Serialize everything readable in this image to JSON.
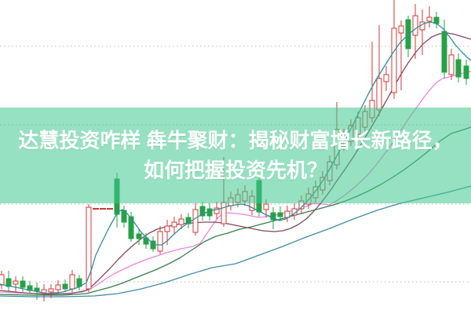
{
  "overlay": {
    "headline_line1": "达慧投资咋样 犇牛聚财：揭秘财富增长新路径，",
    "headline_line2": "如何把握投资先机？",
    "banner_rgba": "rgba(63,201,142,0.55)",
    "text_color": "#ffffff"
  },
  "chart_data": {
    "type": "candlestick",
    "title": "",
    "xlabel": "",
    "ylabel": "",
    "note": "No axis tick labels are visible in the image; all values below are relative price units (image pixels from bottom edge, higher = higher price). Candles are [x, open, high, low, close]; open==close==high==low means a one-price (limit) day drawn as a short dash.",
    "grid": true,
    "gridlines_price": [
      341.5,
      241.5,
      140.5,
      41.5
    ],
    "colors": {
      "up_candle": "#cd3a3a",
      "down_candle": "#26a147",
      "grid": "#b9b9b9",
      "ma_fast_teal": "#2e8f96",
      "ma2_maroon": "#84485f",
      "ma3_pink": "#ee85d6",
      "ma4_green": "#35814a",
      "ma5_blue": "#3f8ca8"
    },
    "candle_width": 6,
    "x_range": [
      0,
      600
    ],
    "price_range": [
      0,
      400
    ],
    "candles": [
      [
        2,
        37,
        55,
        32,
        50
      ],
      [
        11,
        45,
        55,
        28,
        35
      ],
      [
        20,
        38,
        48,
        28,
        42
      ],
      [
        29,
        42,
        48,
        28,
        34
      ],
      [
        38,
        36,
        42,
        26,
        30
      ],
      [
        47,
        33,
        40,
        18,
        29
      ],
      [
        56,
        27,
        38,
        16,
        31
      ],
      [
        65,
        28,
        38,
        20,
        32
      ],
      [
        74,
        31,
        43,
        26,
        37
      ],
      [
        83,
        38,
        44,
        28,
        32
      ],
      [
        92,
        32,
        56,
        28,
        50
      ],
      [
        101,
        45,
        50,
        30,
        35
      ],
      [
        113,
        32,
        140,
        28,
        136
      ],
      [
        122,
        134,
        134,
        134,
        134
      ],
      [
        131,
        134,
        134,
        134,
        134
      ],
      [
        140,
        134,
        134,
        134,
        134
      ],
      [
        149,
        172,
        180,
        110,
        127
      ],
      [
        158,
        132,
        138,
        110,
        117
      ],
      [
        167,
        124,
        130,
        92,
        96
      ],
      [
        177,
        102,
        108,
        88,
        96
      ],
      [
        186,
        97,
        103,
        83,
        89
      ],
      [
        195,
        93,
        99,
        79,
        83
      ],
      [
        204,
        80,
        112,
        76,
        105
      ],
      [
        213,
        105,
        120,
        88,
        112
      ],
      [
        222,
        111,
        124,
        102,
        117
      ],
      [
        231,
        114,
        127,
        108,
        121
      ],
      [
        240,
        123,
        129,
        109,
        115
      ],
      [
        249,
        104,
        141,
        100,
        133
      ],
      [
        258,
        137,
        143,
        119,
        125
      ],
      [
        267,
        134,
        141,
        119,
        125
      ],
      [
        276,
        128,
        143,
        121,
        135
      ],
      [
        285,
        115,
        200,
        111,
        142
      ],
      [
        294,
        138,
        156,
        132,
        148
      ],
      [
        303,
        142,
        160,
        136,
        152
      ],
      [
        312,
        144,
        164,
        138,
        156
      ],
      [
        321,
        132,
        158,
        126,
        150
      ],
      [
        330,
        170,
        176,
        124,
        130
      ],
      [
        339,
        133,
        146,
        123,
        140
      ],
      [
        348,
        129,
        136,
        108,
        120
      ],
      [
        357,
        129,
        137,
        119,
        124
      ],
      [
        366,
        123,
        138,
        117,
        131
      ],
      [
        375,
        126,
        141,
        120,
        134
      ],
      [
        384,
        134,
        151,
        128,
        144
      ],
      [
        393,
        140,
        161,
        134,
        153
      ],
      [
        402,
        148,
        170,
        142,
        162
      ],
      [
        411,
        158,
        182,
        152,
        174
      ],
      [
        420,
        170,
        202,
        164,
        194
      ],
      [
        429,
        190,
        270,
        184,
        235
      ],
      [
        438,
        214,
        236,
        208,
        228
      ],
      [
        447,
        220,
        248,
        214,
        240
      ],
      [
        456,
        229,
        258,
        223,
        250
      ],
      [
        465,
        238,
        266,
        232,
        258
      ],
      [
        474,
        250,
        347,
        244,
        272
      ],
      [
        483,
        260,
        368,
        252,
        300
      ],
      [
        492,
        296,
        316,
        284,
        305
      ],
      [
        502,
        282,
        400,
        274,
        364
      ],
      [
        511,
        358,
        374,
        285,
        367
      ],
      [
        520,
        375,
        380,
        327,
        338
      ],
      [
        529,
        355,
        395,
        325,
        380
      ],
      [
        538,
        362,
        388,
        330,
        372
      ],
      [
        547,
        373,
        392,
        365,
        378
      ],
      [
        556,
        378,
        385,
        364,
        370
      ],
      [
        566,
        360,
        375,
        300,
        308
      ],
      [
        575,
        305,
        338,
        298,
        330
      ],
      [
        584,
        324,
        332,
        295,
        302
      ],
      [
        594,
        316,
        324,
        292,
        300
      ]
    ],
    "series": [
      {
        "name": "ma5_blue",
        "points": [
          [
            0,
            23
          ],
          [
            40,
            22
          ],
          [
            80,
            22
          ],
          [
            120,
            23
          ],
          [
            150,
            26
          ],
          [
            180,
            32
          ],
          [
            210,
            40
          ],
          [
            240,
            50
          ],
          [
            270,
            59
          ],
          [
            300,
            64
          ],
          [
            330,
            75
          ],
          [
            360,
            86
          ],
          [
            390,
            98
          ],
          [
            420,
            109
          ],
          [
            450,
            121
          ],
          [
            480,
            132
          ],
          [
            510,
            141
          ],
          [
            540,
            148
          ],
          [
            570,
            155
          ],
          [
            600,
            163
          ]
        ]
      },
      {
        "name": "ma4_green",
        "points": [
          [
            0,
            25
          ],
          [
            40,
            24
          ],
          [
            80,
            24
          ],
          [
            110,
            26
          ],
          [
            125,
            30
          ],
          [
            140,
            34
          ],
          [
            155,
            39
          ],
          [
            170,
            45
          ],
          [
            185,
            51
          ],
          [
            200,
            57
          ],
          [
            215,
            64
          ],
          [
            230,
            72
          ],
          [
            245,
            82
          ],
          [
            260,
            92
          ],
          [
            275,
            99
          ],
          [
            290,
            103
          ],
          [
            305,
            108
          ],
          [
            320,
            111
          ],
          [
            335,
            115
          ],
          [
            350,
            119
          ],
          [
            365,
            123
          ],
          [
            380,
            127
          ],
          [
            395,
            131
          ],
          [
            410,
            135
          ],
          [
            425,
            139
          ],
          [
            440,
            144
          ],
          [
            455,
            150
          ],
          [
            470,
            157
          ],
          [
            485,
            165
          ],
          [
            500,
            174
          ],
          [
            515,
            184
          ],
          [
            530,
            195
          ],
          [
            545,
            207
          ],
          [
            560,
            220
          ],
          [
            575,
            230
          ],
          [
            588,
            234
          ],
          [
            600,
            238
          ]
        ]
      },
      {
        "name": "ma3_pink",
        "points": [
          [
            0,
            28
          ],
          [
            40,
            26
          ],
          [
            80,
            26
          ],
          [
            105,
            28
          ],
          [
            115,
            32
          ],
          [
            125,
            38
          ],
          [
            135,
            45
          ],
          [
            145,
            51
          ],
          [
            155,
            56
          ],
          [
            170,
            63
          ],
          [
            185,
            69
          ],
          [
            200,
            74
          ],
          [
            215,
            79
          ],
          [
            230,
            83
          ],
          [
            245,
            86
          ],
          [
            255,
            90
          ],
          [
            262,
            100
          ],
          [
            270,
            112
          ],
          [
            278,
            123
          ],
          [
            284,
            128
          ],
          [
            292,
            129
          ],
          [
            300,
            128
          ],
          [
            310,
            127
          ],
          [
            320,
            125
          ],
          [
            330,
            123
          ],
          [
            340,
            124
          ],
          [
            350,
            126
          ],
          [
            360,
            128
          ],
          [
            370,
            131
          ],
          [
            380,
            134
          ],
          [
            390,
            137
          ],
          [
            400,
            141
          ],
          [
            410,
            140
          ],
          [
            420,
            139
          ],
          [
            430,
            145
          ],
          [
            440,
            152
          ],
          [
            450,
            160
          ],
          [
            460,
            169
          ],
          [
            470,
            179
          ],
          [
            480,
            191
          ],
          [
            490,
            204
          ],
          [
            500,
            218
          ],
          [
            510,
            233
          ],
          [
            520,
            248
          ],
          [
            530,
            262
          ],
          [
            540,
            276
          ],
          [
            548,
            286
          ],
          [
            556,
            295
          ],
          [
            564,
            300
          ],
          [
            572,
            302
          ],
          [
            580,
            304
          ],
          [
            590,
            307
          ],
          [
            600,
            309
          ]
        ]
      },
      {
        "name": "ma2_maroon",
        "points": [
          [
            0,
            30
          ],
          [
            30,
            27
          ],
          [
            60,
            25
          ],
          [
            90,
            26
          ],
          [
            110,
            30
          ],
          [
            120,
            38
          ],
          [
            130,
            48
          ],
          [
            140,
            58
          ],
          [
            150,
            69
          ],
          [
            160,
            79
          ],
          [
            170,
            88
          ],
          [
            180,
            96
          ],
          [
            190,
            103
          ],
          [
            200,
            108
          ],
          [
            215,
            112
          ],
          [
            230,
            115
          ],
          [
            245,
            116
          ],
          [
            260,
            117
          ],
          [
            275,
            117
          ],
          [
            290,
            115
          ],
          [
            305,
            112
          ],
          [
            320,
            109
          ],
          [
            335,
            106
          ],
          [
            350,
            105
          ],
          [
            360,
            106
          ],
          [
            370,
            109
          ],
          [
            380,
            114
          ],
          [
            390,
            121
          ],
          [
            398,
            129
          ],
          [
            406,
            138
          ],
          [
            414,
            148
          ],
          [
            422,
            159
          ],
          [
            430,
            171
          ],
          [
            440,
            185
          ],
          [
            450,
            200
          ],
          [
            460,
            216
          ],
          [
            470,
            233
          ],
          [
            480,
            250
          ],
          [
            490,
            268
          ],
          [
            500,
            286
          ],
          [
            510,
            304
          ],
          [
            520,
            320
          ],
          [
            530,
            334
          ],
          [
            540,
            345
          ],
          [
            550,
            353
          ],
          [
            560,
            357
          ],
          [
            570,
            358
          ],
          [
            580,
            356
          ],
          [
            590,
            353
          ],
          [
            600,
            350
          ]
        ]
      },
      {
        "name": "ma_fast_teal",
        "points": [
          [
            0,
            38
          ],
          [
            20,
            34
          ],
          [
            40,
            30
          ],
          [
            60,
            26
          ],
          [
            80,
            28
          ],
          [
            100,
            34
          ],
          [
            110,
            40
          ],
          [
            116,
            55
          ],
          [
            122,
            75
          ],
          [
            130,
            92
          ],
          [
            140,
            112
          ],
          [
            150,
            130
          ],
          [
            156,
            133
          ],
          [
            162,
            128
          ],
          [
            170,
            118
          ],
          [
            180,
            104
          ],
          [
            190,
            94
          ],
          [
            198,
            88
          ],
          [
            206,
            88
          ],
          [
            214,
            94
          ],
          [
            222,
            102
          ],
          [
            230,
            109
          ],
          [
            238,
            115
          ],
          [
            246,
            120
          ],
          [
            254,
            125
          ],
          [
            262,
            129
          ],
          [
            270,
            132
          ],
          [
            280,
            134
          ],
          [
            290,
            137
          ],
          [
            300,
            139
          ],
          [
            308,
            140
          ],
          [
            316,
            138
          ],
          [
            324,
            134
          ],
          [
            332,
            130
          ],
          [
            340,
            126
          ],
          [
            348,
            122
          ],
          [
            356,
            119
          ],
          [
            364,
            121
          ],
          [
            372,
            126
          ],
          [
            380,
            132
          ],
          [
            388,
            140
          ],
          [
            396,
            149
          ],
          [
            404,
            159
          ],
          [
            412,
            171
          ],
          [
            420,
            185
          ],
          [
            430,
            203
          ],
          [
            440,
            222
          ],
          [
            450,
            242
          ],
          [
            460,
            262
          ],
          [
            470,
            282
          ],
          [
            480,
            300
          ],
          [
            490,
            316
          ],
          [
            500,
            332
          ],
          [
            510,
            346
          ],
          [
            520,
            356
          ],
          [
            530,
            364
          ],
          [
            540,
            370
          ],
          [
            548,
            372
          ],
          [
            556,
            370
          ],
          [
            564,
            364
          ],
          [
            572,
            354
          ],
          [
            580,
            343
          ],
          [
            588,
            334
          ],
          [
            596,
            326
          ],
          [
            600,
            323
          ]
        ]
      }
    ],
    "legend": null,
    "axis_labels_visible": false
  }
}
